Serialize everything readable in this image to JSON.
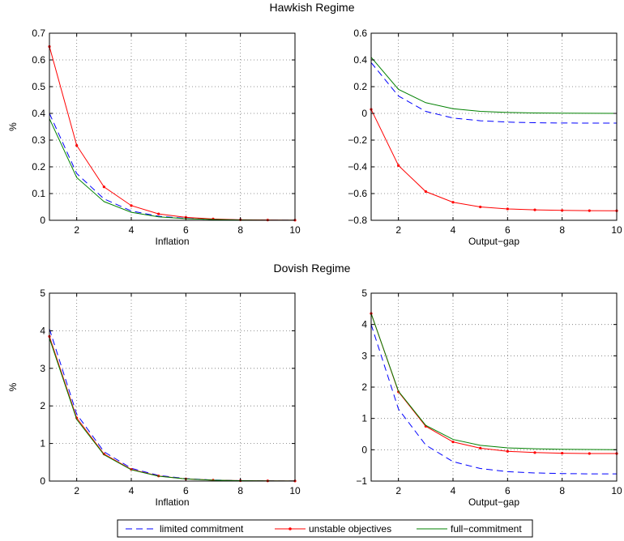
{
  "legend": {
    "position": "bottom-center",
    "entries": [
      {
        "label": "limited commitment",
        "color": "#0000ff",
        "style": "dashed"
      },
      {
        "label": "unstable objectives",
        "color": "#ff0000",
        "style": "solid-dot"
      },
      {
        "label": "full−commitment",
        "color": "#008000",
        "style": "solid"
      }
    ]
  },
  "chart_data": [
    {
      "type": "line",
      "title": "Hawkish Regime",
      "xlabel": "Inflation",
      "ylabel": "%",
      "xlim": [
        1,
        10
      ],
      "ylim": [
        0,
        0.7
      ],
      "xticks": [
        2,
        4,
        6,
        8,
        10
      ],
      "yticks": [
        0,
        0.1,
        0.2,
        0.3,
        0.4,
        0.5,
        0.6,
        0.7
      ],
      "ytick_labels": [
        "0",
        "0.1",
        "0.2",
        "0.3",
        "0.4",
        "0.5",
        "0.6",
        "0.7"
      ],
      "grid": true,
      "x": [
        1,
        2,
        3,
        4,
        5,
        6,
        7,
        8,
        9,
        10
      ],
      "series": [
        {
          "name": "limited commitment",
          "values": [
            0.4,
            0.175,
            0.08,
            0.035,
            0.015,
            0.007,
            0.003,
            0.001,
            0.0005,
            0.0002
          ]
        },
        {
          "name": "unstable objectives",
          "values": [
            0.65,
            0.28,
            0.125,
            0.055,
            0.024,
            0.011,
            0.005,
            0.002,
            0.001,
            0.0005
          ]
        },
        {
          "name": "full−commitment",
          "values": [
            0.38,
            0.16,
            0.07,
            0.03,
            0.013,
            0.006,
            0.003,
            0.001,
            0.0005,
            0.0002
          ]
        }
      ]
    },
    {
      "type": "line",
      "title": "",
      "xlabel": "Output−gap",
      "ylabel": "",
      "xlim": [
        1,
        10
      ],
      "ylim": [
        -0.8,
        0.6
      ],
      "xticks": [
        2,
        4,
        6,
        8,
        10
      ],
      "yticks": [
        -0.8,
        -0.6,
        -0.4,
        -0.2,
        0,
        0.2,
        0.4,
        0.6
      ],
      "ytick_labels": [
        "−0.8",
        "−0.6",
        "−0.4",
        "−0.2",
        "0",
        "0.2",
        "0.4",
        "0.6"
      ],
      "grid": true,
      "x": [
        1,
        2,
        3,
        4,
        5,
        6,
        7,
        8,
        9,
        10
      ],
      "series": [
        {
          "name": "limited commitment",
          "values": [
            0.38,
            0.13,
            0.015,
            -0.035,
            -0.055,
            -0.065,
            -0.07,
            -0.072,
            -0.073,
            -0.073
          ]
        },
        {
          "name": "unstable objectives",
          "values": [
            0.03,
            -0.39,
            -0.585,
            -0.665,
            -0.7,
            -0.715,
            -0.722,
            -0.726,
            -0.728,
            -0.729
          ]
        },
        {
          "name": "full−commitment",
          "values": [
            0.42,
            0.18,
            0.08,
            0.035,
            0.015,
            0.007,
            0.003,
            0.0015,
            0.0007,
            0.0003
          ]
        }
      ]
    },
    {
      "type": "line",
      "title": "Dovish Regime",
      "xlabel": "Inflation",
      "ylabel": "%",
      "xlim": [
        1,
        10
      ],
      "ylim": [
        0,
        5
      ],
      "xticks": [
        2,
        4,
        6,
        8,
        10
      ],
      "yticks": [
        0,
        1,
        2,
        3,
        4,
        5
      ],
      "ytick_labels": [
        "0",
        "1",
        "2",
        "3",
        "4",
        "5"
      ],
      "grid": true,
      "x": [
        1,
        2,
        3,
        4,
        5,
        6,
        7,
        8,
        9,
        10
      ],
      "series": [
        {
          "name": "limited commitment",
          "values": [
            4.05,
            1.78,
            0.78,
            0.34,
            0.15,
            0.065,
            0.028,
            0.012,
            0.005,
            0.002
          ]
        },
        {
          "name": "unstable objectives",
          "values": [
            3.85,
            1.68,
            0.72,
            0.31,
            0.135,
            0.058,
            0.025,
            0.011,
            0.005,
            0.002
          ]
        },
        {
          "name": "full−commitment",
          "values": [
            3.8,
            1.64,
            0.7,
            0.3,
            0.13,
            0.056,
            0.024,
            0.01,
            0.004,
            0.002
          ]
        }
      ]
    },
    {
      "type": "line",
      "title": "",
      "xlabel": "Output−gap",
      "ylabel": "",
      "xlim": [
        1,
        10
      ],
      "ylim": [
        -1,
        5
      ],
      "xticks": [
        2,
        4,
        6,
        8,
        10
      ],
      "yticks": [
        -1,
        0,
        1,
        2,
        3,
        4,
        5
      ],
      "ytick_labels": [
        "−1",
        "0",
        "1",
        "2",
        "3",
        "4",
        "5"
      ],
      "grid": true,
      "x": [
        1,
        2,
        3,
        4,
        5,
        6,
        7,
        8,
        9,
        10
      ],
      "series": [
        {
          "name": "limited commitment",
          "values": [
            4.0,
            1.3,
            0.15,
            -0.38,
            -0.6,
            -0.7,
            -0.74,
            -0.76,
            -0.77,
            -0.77
          ]
        },
        {
          "name": "unstable objectives",
          "values": [
            4.35,
            1.85,
            0.75,
            0.25,
            0.05,
            -0.05,
            -0.09,
            -0.11,
            -0.12,
            -0.12
          ]
        },
        {
          "name": "full−commitment",
          "values": [
            4.35,
            1.87,
            0.78,
            0.33,
            0.14,
            0.06,
            0.03,
            0.015,
            0.007,
            0.003
          ]
        }
      ]
    }
  ]
}
